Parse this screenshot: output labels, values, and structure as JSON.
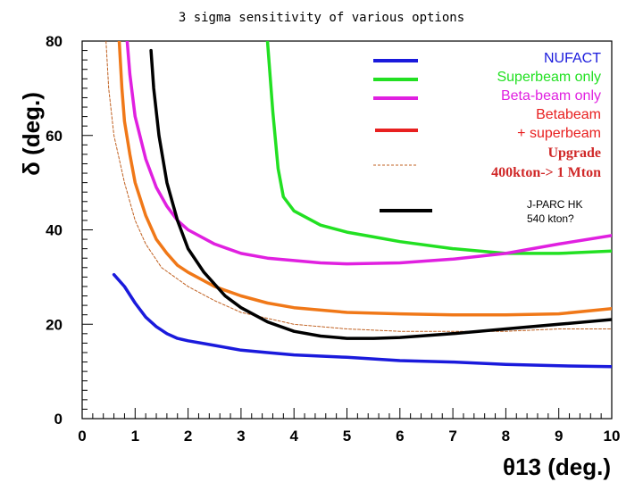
{
  "chart_data": {
    "type": "line",
    "title": "3 sigma sensitivity of various options",
    "xlabel": "θ13 (deg.)",
    "ylabel": "δ (deg.)",
    "xlim": [
      0,
      10
    ],
    "ylim": [
      0,
      80
    ],
    "xticks": [
      "0",
      "1",
      "2",
      "3",
      "4",
      "5",
      "6",
      "7",
      "8",
      "9",
      "10"
    ],
    "yticks": [
      "0",
      "20",
      "40",
      "60",
      "80"
    ],
    "grid": false,
    "legend_position": "top-right",
    "series": [
      {
        "name": "NUFACT",
        "color": "#1a1adc",
        "dashed": false,
        "width": 3.5,
        "points": [
          [
            0.6,
            30.5
          ],
          [
            0.8,
            28
          ],
          [
            1,
            24.5
          ],
          [
            1.2,
            21.5
          ],
          [
            1.4,
            19.5
          ],
          [
            1.6,
            18
          ],
          [
            1.8,
            17
          ],
          [
            2,
            16.5
          ],
          [
            2.5,
            15.5
          ],
          [
            3,
            14.5
          ],
          [
            3.5,
            14
          ],
          [
            4,
            13.5
          ],
          [
            5,
            13
          ],
          [
            6,
            12.3
          ],
          [
            7,
            12
          ],
          [
            8,
            11.5
          ],
          [
            9,
            11.2
          ],
          [
            10,
            11
          ]
        ]
      },
      {
        "name": "Superbeam only",
        "color": "#22e022",
        "dashed": false,
        "width": 3.5,
        "points": [
          [
            3.5,
            80
          ],
          [
            3.6,
            65
          ],
          [
            3.7,
            53
          ],
          [
            3.8,
            47
          ],
          [
            4,
            44
          ],
          [
            4.5,
            41
          ],
          [
            5,
            39.5
          ],
          [
            5.5,
            38.5
          ],
          [
            6,
            37.5
          ],
          [
            7,
            36
          ],
          [
            8,
            35
          ],
          [
            9,
            35
          ],
          [
            10,
            35.5
          ]
        ]
      },
      {
        "name": "Beta-beam only",
        "color": "#e020e0",
        "dashed": false,
        "width": 3.5,
        "points": [
          [
            0.85,
            80
          ],
          [
            0.9,
            73
          ],
          [
            1.0,
            64
          ],
          [
            1.2,
            55
          ],
          [
            1.4,
            49
          ],
          [
            1.6,
            45
          ],
          [
            1.8,
            42
          ],
          [
            2,
            40
          ],
          [
            2.5,
            37
          ],
          [
            3,
            35
          ],
          [
            3.5,
            34
          ],
          [
            4,
            33.5
          ],
          [
            4.5,
            33
          ],
          [
            5,
            32.8
          ],
          [
            6,
            33
          ],
          [
            7,
            33.8
          ],
          [
            8,
            35
          ],
          [
            9,
            37
          ],
          [
            10,
            38.8
          ]
        ]
      },
      {
        "name": "Betabeam + superbeam",
        "color": "#f07818",
        "dashed": false,
        "width": 3.5,
        "points": [
          [
            0.7,
            80
          ],
          [
            0.75,
            70
          ],
          [
            0.8,
            63
          ],
          [
            0.9,
            56
          ],
          [
            1.0,
            50
          ],
          [
            1.2,
            43
          ],
          [
            1.4,
            38
          ],
          [
            1.6,
            35
          ],
          [
            1.8,
            32.5
          ],
          [
            2,
            31
          ],
          [
            2.5,
            28
          ],
          [
            3,
            26
          ],
          [
            3.5,
            24.5
          ],
          [
            4,
            23.5
          ],
          [
            5,
            22.5
          ],
          [
            6,
            22.2
          ],
          [
            7,
            22
          ],
          [
            8,
            22
          ],
          [
            9,
            22.2
          ],
          [
            10,
            23.3
          ]
        ]
      },
      {
        "name": "Upgrade 400kton-> 1 Mton",
        "color": "#c06020",
        "dashed": true,
        "width": 1,
        "points": [
          [
            0.45,
            80
          ],
          [
            0.5,
            70
          ],
          [
            0.6,
            60
          ],
          [
            0.8,
            50
          ],
          [
            1.0,
            42
          ],
          [
            1.2,
            37
          ],
          [
            1.5,
            32
          ],
          [
            2,
            28
          ],
          [
            2.5,
            25
          ],
          [
            3,
            22.5
          ],
          [
            4,
            20
          ],
          [
            5,
            19
          ],
          [
            6,
            18.5
          ],
          [
            7,
            18.5
          ],
          [
            8,
            18.5
          ],
          [
            9,
            19
          ],
          [
            10,
            19
          ]
        ]
      },
      {
        "name": "J-PARC HK 540 kton?",
        "color": "#000000",
        "dashed": false,
        "width": 3.5,
        "points": [
          [
            1.3,
            78
          ],
          [
            1.35,
            70
          ],
          [
            1.45,
            60
          ],
          [
            1.6,
            50
          ],
          [
            1.8,
            42
          ],
          [
            2,
            36
          ],
          [
            2.3,
            31
          ],
          [
            2.7,
            26
          ],
          [
            3,
            23.5
          ],
          [
            3.5,
            20.5
          ],
          [
            4,
            18.5
          ],
          [
            4.5,
            17.5
          ],
          [
            5,
            17
          ],
          [
            5.5,
            17
          ],
          [
            6,
            17.2
          ],
          [
            7,
            18
          ],
          [
            8,
            19
          ],
          [
            9,
            20
          ],
          [
            10,
            21
          ]
        ]
      }
    ],
    "legend": [
      {
        "lines": [
          "NUFACT"
        ],
        "color": "#1a1adc",
        "text_color": "#1a1adc",
        "style": "sans"
      },
      {
        "lines": [
          "Superbeam only"
        ],
        "color": "#22e022",
        "text_color": "#22e022",
        "style": "sans"
      },
      {
        "lines": [
          "Beta-beam only"
        ],
        "color": "#e020e0",
        "text_color": "#e020e0",
        "style": "sans"
      },
      {
        "lines": [
          "Betabeam",
          "+ superbeam"
        ],
        "color": "#e82020",
        "text_color": "#e82020",
        "style": "sans"
      },
      {
        "lines": [
          "Upgrade",
          "400kton-> 1 Mton"
        ],
        "color": "#c06020",
        "text_color": "#d02828",
        "style": "serif",
        "dashed": true
      },
      {
        "lines": [
          "J-PARC HK",
          "540 kton?"
        ],
        "color": "#000000",
        "text_color": "#000000",
        "style": "small"
      }
    ]
  }
}
